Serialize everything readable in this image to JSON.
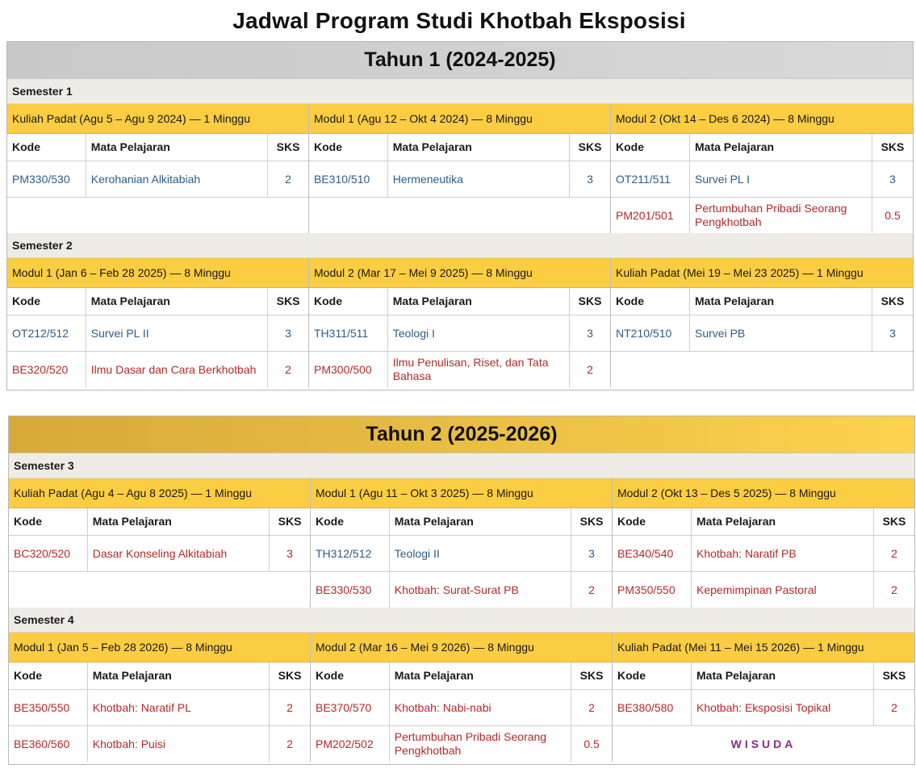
{
  "title": "Jadwal Program Studi Khotbah Eksposisi",
  "columns": {
    "kode": "Kode",
    "mata": "Mata Pelajaran",
    "sks": "SKS"
  },
  "years": [
    {
      "title": "Tahun 1 (2024-2025)",
      "semesters": [
        {
          "label": "Semester 1",
          "modules": [
            {
              "header": "Kuliah Padat (Agu 5 – Agu 9 2024) — 1 Minggu",
              "courses": [
                {
                  "kode": "PM330/530",
                  "mata": "Kerohanian Alkitabiah",
                  "sks": "2",
                  "color": "blue"
                }
              ]
            },
            {
              "header": "Modul 1 (Agu 12 – Okt 4 2024) — 8 Minggu",
              "courses": [
                {
                  "kode": "BE310/510",
                  "mata": "Hermeneutika",
                  "sks": "3",
                  "color": "blue"
                }
              ]
            },
            {
              "header": "Modul 2 (Okt 14 – Des 6 2024) — 8 Minggu",
              "courses": [
                {
                  "kode": "OT211/511",
                  "mata": "Survei PL I",
                  "sks": "3",
                  "color": "blue"
                },
                {
                  "kode": "PM201/501",
                  "mata": "Pertumbuhan Pribadi Seorang Pengkhotbah",
                  "sks": "0.5",
                  "color": "red"
                }
              ]
            }
          ]
        },
        {
          "label": "Semester 2",
          "modules": [
            {
              "header": "Modul 1 (Jan 6 – Feb 28 2025) — 8 Minggu",
              "courses": [
                {
                  "kode": "OT212/512",
                  "mata": "Survei PL II",
                  "sks": "3",
                  "color": "blue"
                },
                {
                  "kode": "BE320/520",
                  "mata": "Ilmu Dasar dan Cara Berkhotbah",
                  "sks": "2",
                  "color": "red"
                }
              ]
            },
            {
              "header": "Modul 2 (Mar 17 – Mei 9 2025) — 8 Minggu",
              "courses": [
                {
                  "kode": "TH311/511",
                  "mata": "Teologi I",
                  "sks": "3",
                  "color": "blue"
                },
                {
                  "kode": "PM300/500",
                  "mata": "Ilmu Penulisan, Riset, dan Tata Bahasa",
                  "sks": "2",
                  "color": "red"
                }
              ]
            },
            {
              "header": "Kuliah Padat (Mei 19 – Mei 23 2025) — 1 Minggu",
              "courses": [
                {
                  "kode": "NT210/510",
                  "mata": "Survei PB",
                  "sks": "3",
                  "color": "blue"
                }
              ]
            }
          ]
        }
      ]
    },
    {
      "title": "Tahun 2 (2025-2026)",
      "semesters": [
        {
          "label": "Semester 3",
          "modules": [
            {
              "header": "Kuliah Padat (Agu 4 – Agu 8 2025) — 1 Minggu",
              "courses": [
                {
                  "kode": "BC320/520",
                  "mata": "Dasar Konseling Alkitabiah",
                  "sks": "3",
                  "color": "red"
                }
              ]
            },
            {
              "header": "Modul 1 (Agu 11 – Okt 3 2025) — 8 Minggu",
              "courses": [
                {
                  "kode": "TH312/512",
                  "mata": "Teologi II",
                  "sks": "3",
                  "color": "blue"
                },
                {
                  "kode": "BE330/530",
                  "mata": "Khotbah: Surat-Surat PB",
                  "sks": "2",
                  "color": "red"
                }
              ]
            },
            {
              "header": "Modul 2 (Okt 13 – Des 5 2025) — 8 Minggu",
              "courses": [
                {
                  "kode": "BE340/540",
                  "mata": "Khotbah: Naratif PB",
                  "sks": "2",
                  "color": "red"
                },
                {
                  "kode": "PM350/550",
                  "mata": "Kepemimpinan Pastoral",
                  "sks": "2",
                  "color": "red"
                }
              ]
            }
          ]
        },
        {
          "label": "Semester 4",
          "modules": [
            {
              "header": "Modul 1 (Jan 5 – Feb 28 2026) — 8 Minggu",
              "courses": [
                {
                  "kode": "BE350/550",
                  "mata": "Khotbah: Naratif PL",
                  "sks": "2",
                  "color": "red"
                },
                {
                  "kode": "BE360/560",
                  "mata": "Khotbah: Puisi",
                  "sks": "2",
                  "color": "red"
                }
              ]
            },
            {
              "header": "Modul 2 (Mar 16 – Mei 9 2026) — 8 Minggu",
              "courses": [
                {
                  "kode": "BE370/570",
                  "mata": "Khotbah: Nabi-nabi",
                  "sks": "2",
                  "color": "red"
                },
                {
                  "kode": "PM202/502",
                  "mata": "Pertumbuhan Pribadi Seorang Pengkhotbah",
                  "sks": "0.5",
                  "color": "red"
                }
              ]
            },
            {
              "header": "Kuliah Padat (Mei 11 – Mei 15 2026) — 1 Minggu",
              "courses": [
                {
                  "kode": "BE380/580",
                  "mata": "Khotbah: Eksposisi Topikal",
                  "sks": "2",
                  "color": "red"
                }
              ],
              "footer": "WISUDA"
            }
          ]
        }
      ]
    }
  ],
  "colors": {
    "blue": "#2c5d88",
    "red": "#b32a2a",
    "gold": "#fbcd42",
    "wisuda": "#8a2b8a"
  }
}
